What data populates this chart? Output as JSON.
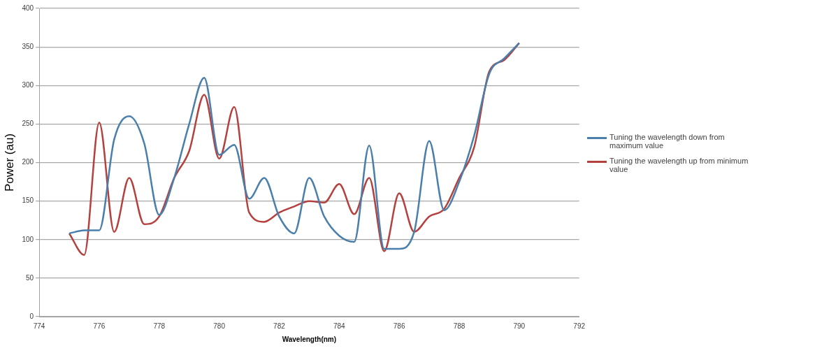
{
  "chart_data": {
    "type": "line",
    "xlabel": "Wavelength(nm)",
    "ylabel": "Power (au)",
    "x": [
      775,
      775.5,
      776,
      776.5,
      777,
      777.5,
      778,
      778.5,
      779,
      779.5,
      780,
      780.5,
      781,
      781.5,
      782,
      782.5,
      783,
      783.5,
      784,
      784.5,
      785,
      785.5,
      786,
      786.5,
      787,
      787.5,
      788,
      788.5,
      789,
      789.5,
      790
    ],
    "series": [
      {
        "name": "Tuning the wavelength down from maximum value",
        "color": "#4a7eab",
        "values": [
          108,
          112,
          112,
          230,
          260,
          225,
          132,
          180,
          250,
          310,
          210,
          223,
          153,
          180,
          130,
          108,
          180,
          130,
          105,
          97,
          222,
          88,
          88,
          110,
          228,
          138,
          175,
          235,
          315,
          335,
          355
        ]
      },
      {
        "name": "Tuning the wavelength up from minimum value",
        "color": "#b5413f",
        "values": [
          108,
          80,
          252,
          110,
          180,
          120,
          130,
          180,
          215,
          288,
          205,
          272,
          135,
          123,
          135,
          143,
          150,
          148,
          172,
          133,
          180,
          85,
          160,
          110,
          130,
          140,
          180,
          220,
          318,
          333,
          355
        ]
      }
    ],
    "xlim": [
      774,
      792
    ],
    "xticks": [
      774,
      776,
      778,
      780,
      782,
      784,
      786,
      788,
      790,
      792
    ],
    "ylim": [
      0,
      400
    ],
    "yticks": [
      0,
      50,
      100,
      150,
      200,
      250,
      300,
      350,
      400
    ],
    "grid": "y",
    "legend": "right",
    "marker": "none",
    "line_style": "solid"
  }
}
